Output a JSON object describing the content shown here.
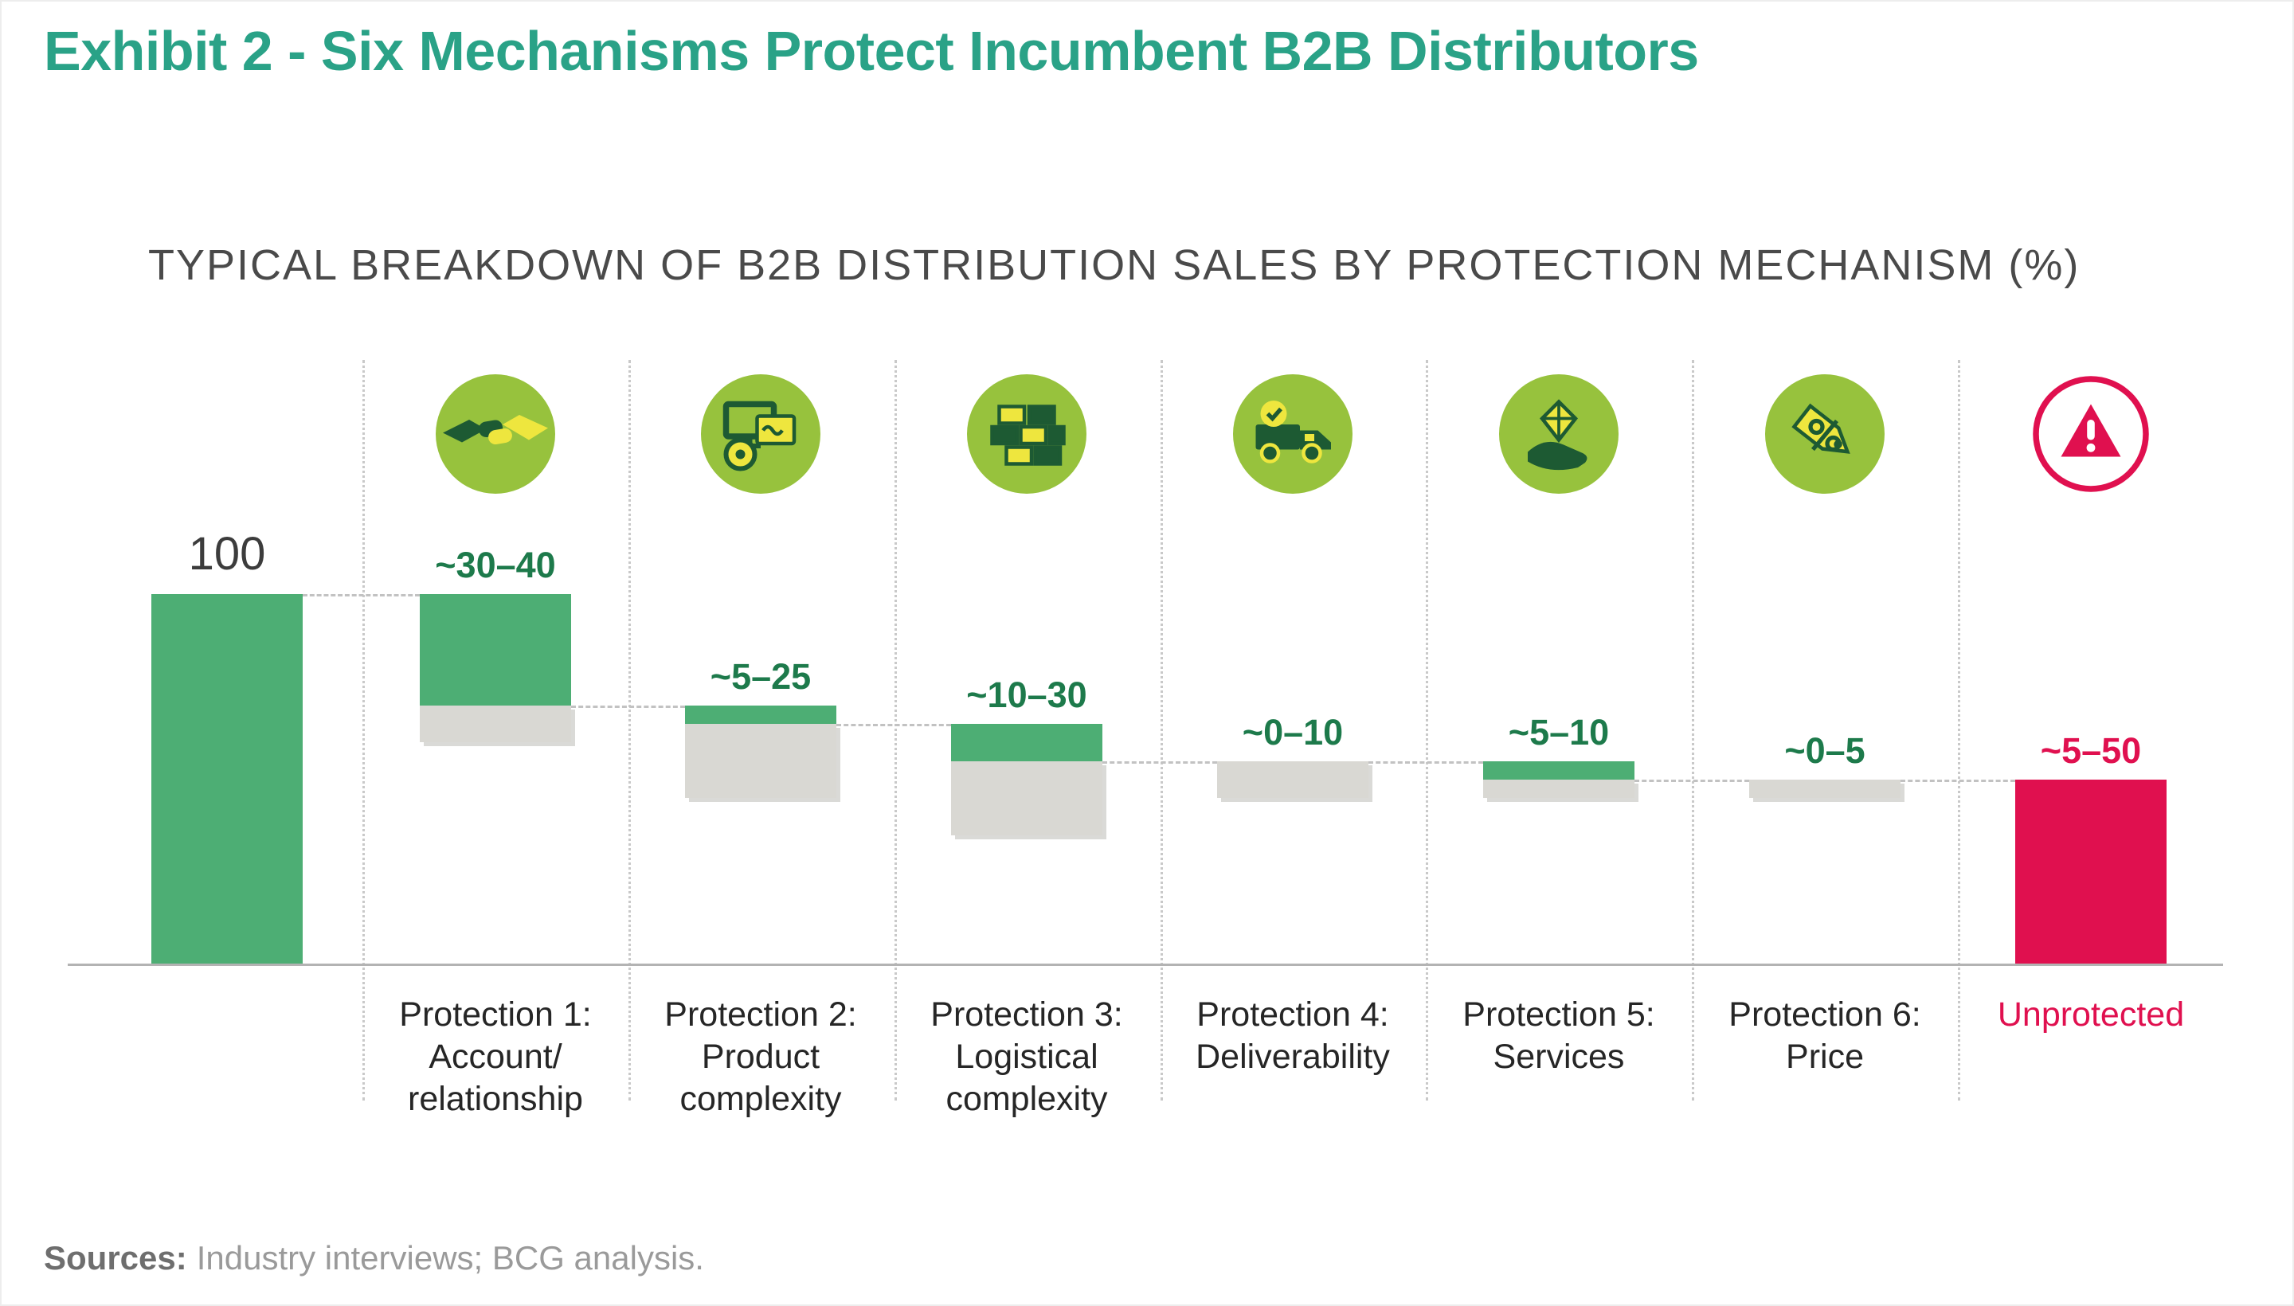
{
  "page": {
    "title": "Exhibit 2 - Six Mechanisms Protect Incumbent B2B Distributors",
    "sources_label": "Sources:",
    "sources_text": "Industry interviews; BCG analysis."
  },
  "chart_data": {
    "type": "waterfall",
    "title": "TYPICAL BREAKDOWN OF B2B DISTRIBUTION SALES BY PROTECTION MECHANISM (%)",
    "start_label": "100",
    "start_value": 100,
    "axis_range": [
      0,
      100
    ],
    "grid": false,
    "legend": false,
    "columns": [
      {
        "kind": "protection",
        "icon": "handshake-icon",
        "value_label": "~30–40",
        "min": 30,
        "max": 40,
        "label_lines": [
          "Protection 1:",
          "Account/",
          "relationship"
        ]
      },
      {
        "kind": "protection",
        "icon": "product-complexity-icon",
        "value_label": "~5–25",
        "min": 5,
        "max": 25,
        "label_lines": [
          "Protection 2:",
          "Product",
          "complexity"
        ]
      },
      {
        "kind": "protection",
        "icon": "logistical-complexity-icon",
        "value_label": "~10–30",
        "min": 10,
        "max": 30,
        "label_lines": [
          "Protection 3:",
          "Logistical",
          "complexity"
        ]
      },
      {
        "kind": "protection",
        "icon": "delivery-truck-icon",
        "value_label": "~0–10",
        "min": 0,
        "max": 10,
        "label_lines": [
          "Protection 4:",
          "Deliverability"
        ]
      },
      {
        "kind": "protection",
        "icon": "hand-diamond-icon",
        "value_label": "~5–10",
        "min": 5,
        "max": 10,
        "label_lines": [
          "Protection 5:",
          "Services"
        ]
      },
      {
        "kind": "protection",
        "icon": "price-tag-icon",
        "value_label": "~0–5",
        "min": 0,
        "max": 5,
        "label_lines": [
          "Protection 6:",
          "Price"
        ]
      },
      {
        "kind": "unprotected",
        "icon": "warning-icon",
        "value_label": "~5–50",
        "min": 5,
        "max": 50,
        "remaining_value": 50,
        "label_lines": [
          "Unprotected"
        ]
      }
    ],
    "colors": {
      "title_teal": "#2aa287",
      "bar_green": "#4dae74",
      "range_gray": "#d9d8d3",
      "unprotected_red": "#e0104f",
      "icon_circle_green": "#97c23d",
      "value_label_green": "#1d7a4b"
    }
  }
}
